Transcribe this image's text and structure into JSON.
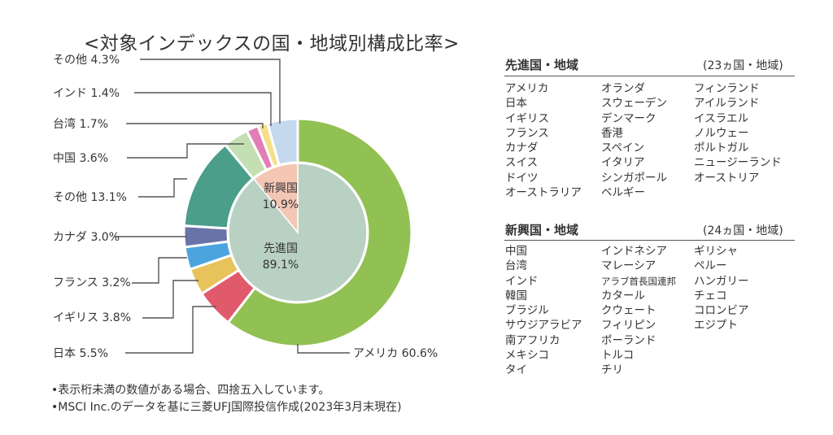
{
  "chart_data": {
    "type": "pie",
    "title": "<対象インデックスの国・地域別構成比率>",
    "outer_ring": [
      {
        "label": "アメリカ",
        "value": 60.6,
        "color": "#92c153"
      },
      {
        "label": "日本",
        "value": 5.5,
        "color": "#e05a6c"
      },
      {
        "label": "イギリス",
        "value": 3.8,
        "color": "#e8c25a"
      },
      {
        "label": "フランス",
        "value": 3.2,
        "color": "#4ba4de"
      },
      {
        "label": "カナダ",
        "value": 3.0,
        "color": "#6a73a8"
      },
      {
        "label": "その他",
        "value": 13.1,
        "color": "#4a9e8a"
      },
      {
        "label": "中国",
        "value": 3.6,
        "color": "#c4dfb2"
      },
      {
        "label": "台湾",
        "value": 1.7,
        "color": "#e27eb5"
      },
      {
        "label": "インド",
        "value": 1.4,
        "color": "#f4e08a"
      },
      {
        "label": "その他",
        "value": 4.3,
        "color": "#c5d9ee"
      }
    ],
    "inner_ring": [
      {
        "label": "先進国",
        "value": 89.1,
        "color": "#b9d1c3"
      },
      {
        "label": "新興国",
        "value": 10.9,
        "color": "#f4c6b4"
      }
    ],
    "outer_labels": [
      "その他 4.3%",
      "インド 1.4%",
      "台湾 1.7%",
      "中国 3.6%",
      "その他 13.1%",
      "カナダ 3.0%",
      "フランス 3.2%",
      "イギリス 3.8%",
      "日本 5.5%",
      "アメリカ 60.6%"
    ],
    "inner_labels": [
      {
        "name": "先進国",
        "pct": "89.1%"
      },
      {
        "name": "新興国",
        "pct": "10.9%"
      }
    ]
  },
  "developed": {
    "title": "先進国・地域",
    "count": "(23ヵ国・地域)",
    "columns": [
      [
        "アメリカ",
        "日本",
        "イギリス",
        "フランス",
        "カナダ",
        "スイス",
        "ドイツ",
        "オーストラリア"
      ],
      [
        "オランダ",
        "スウェーデン",
        "デンマーク",
        "香港",
        "スペイン",
        "イタリア",
        "シンガポール",
        "ベルギー"
      ],
      [
        "フィンランド",
        "アイルランド",
        "イスラエル",
        "ノルウェー",
        "ポルトガル",
        "ニュージーランド",
        "オーストリア"
      ]
    ]
  },
  "emerging": {
    "title": "新興国・地域",
    "count": "(24ヵ国・地域)",
    "columns": [
      [
        "中国",
        "台湾",
        "インド",
        "韓国",
        "ブラジル",
        "サウジアラビア",
        "南アフリカ",
        "メキシコ",
        "タイ"
      ],
      [
        "インドネシア",
        "マレーシア",
        "アラブ首長国連邦",
        "カタール",
        "クウェート",
        "フィリピン",
        "ポーランド",
        "トルコ",
        "チリ"
      ],
      [
        "ギリシャ",
        "ペルー",
        "ハンガリー",
        "チェコ",
        "コロンビア",
        "エジプト"
      ]
    ]
  },
  "notes": [
    "•表示桁未満の数値がある場合、四捨五入しています。",
    "•MSCI Inc.のデータを基に三菱UFJ国際投信作成(2023年3月末現在)"
  ]
}
